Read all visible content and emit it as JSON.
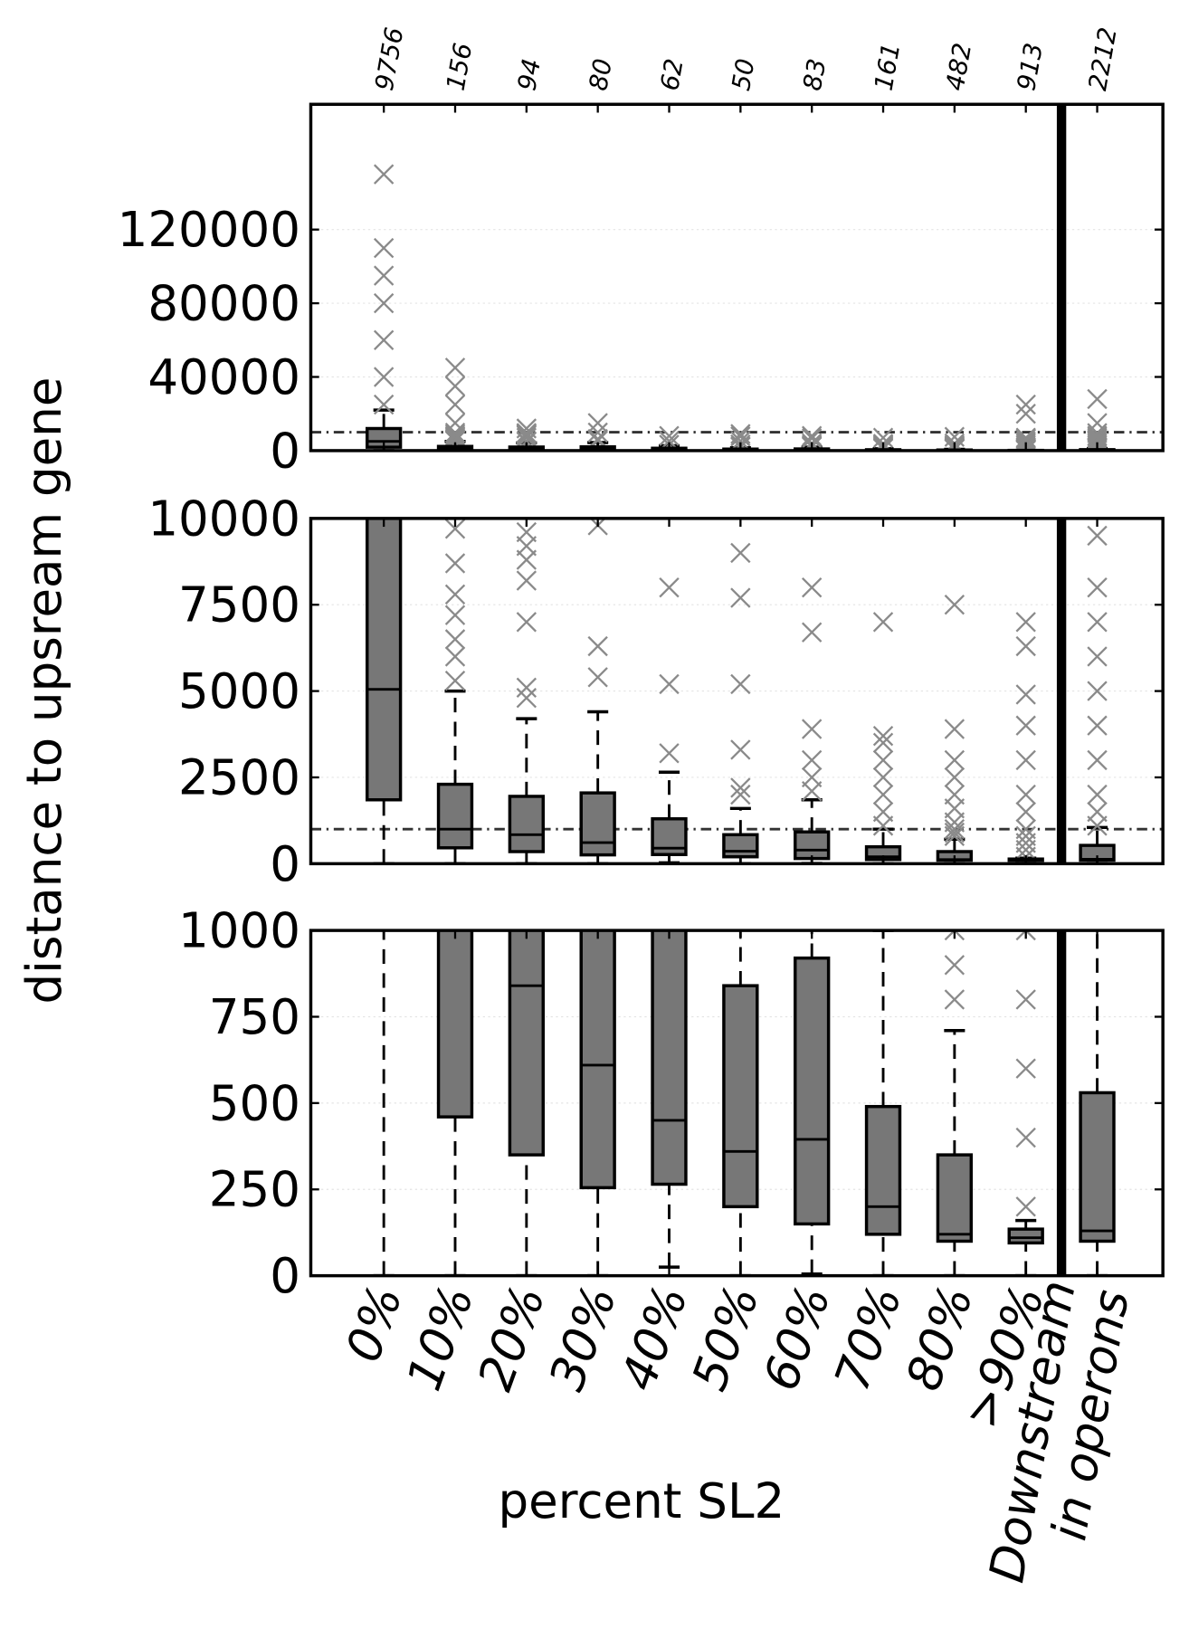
{
  "chart_data": {
    "type": "box",
    "ylabel": "distance to upsream gene",
    "xlabel": "percent SL2",
    "categories": [
      "0%",
      "10%",
      "20%",
      "30%",
      "40%",
      "50%",
      "60%",
      "70%",
      "80%",
      ">90%",
      "Downstream\nin operons"
    ],
    "counts": [
      9756,
      156,
      94,
      80,
      62,
      50,
      83,
      161,
      482,
      913,
      2212
    ],
    "whislo": [
      0,
      0,
      0,
      0,
      25,
      0,
      5,
      0,
      0,
      0,
      0
    ],
    "q1": [
      1850,
      460,
      350,
      255,
      265,
      200,
      150,
      120,
      100,
      95,
      100
    ],
    "median": [
      5050,
      1000,
      840,
      610,
      450,
      360,
      395,
      200,
      120,
      110,
      130
    ],
    "q3": [
      12000,
      2300,
      1950,
      2050,
      1300,
      840,
      920,
      490,
      350,
      135,
      530
    ],
    "whishi": [
      22000,
      5000,
      4200,
      4400,
      2650,
      1600,
      1850,
      1000,
      710,
      160,
      1050
    ],
    "fliers": [
      [
        25000,
        40000,
        60000,
        80000,
        95000,
        110000,
        150000
      ],
      [
        5300,
        6000,
        6500,
        7200,
        7800,
        8700,
        9700,
        15000,
        25000,
        35000,
        45000
      ],
      [
        4800,
        5100,
        7000,
        8200,
        8800,
        9200,
        9600,
        12000
      ],
      [
        5400,
        6300,
        9800,
        15000
      ],
      [
        3200,
        5200,
        8000
      ],
      [
        2000,
        2200,
        3300,
        5200,
        7700,
        9000
      ],
      [
        2100,
        2500,
        3000,
        3900,
        6700,
        8000
      ],
      [
        1100,
        1500,
        2000,
        2500,
        3000,
        3500,
        3700,
        7000
      ],
      [
        800,
        900,
        1000,
        1200,
        1600,
        2000,
        2500,
        3000,
        3900,
        7500
      ],
      [
        200,
        400,
        600,
        800,
        1000,
        1500,
        2000,
        3000,
        4000,
        4900,
        6300,
        7000,
        20000,
        25000
      ],
      [
        1100,
        1500,
        2000,
        3000,
        4000,
        5000,
        6000,
        7000,
        8000,
        9500,
        15000,
        28000
      ]
    ],
    "color": "#777777",
    "flier_color": "#8a8a8a",
    "grid": true,
    "panels": [
      {
        "ylim": [
          0,
          188000
        ],
        "yticks": [
          0,
          40000,
          80000,
          120000
        ],
        "refline": 10000
      },
      {
        "ylim": [
          0,
          10000
        ],
        "yticks": [
          0,
          2500,
          5000,
          7500,
          10000
        ],
        "refline": 1000
      },
      {
        "ylim": [
          0,
          1000
        ],
        "yticks": [
          0,
          250,
          500,
          750,
          1000
        ]
      }
    ]
  }
}
